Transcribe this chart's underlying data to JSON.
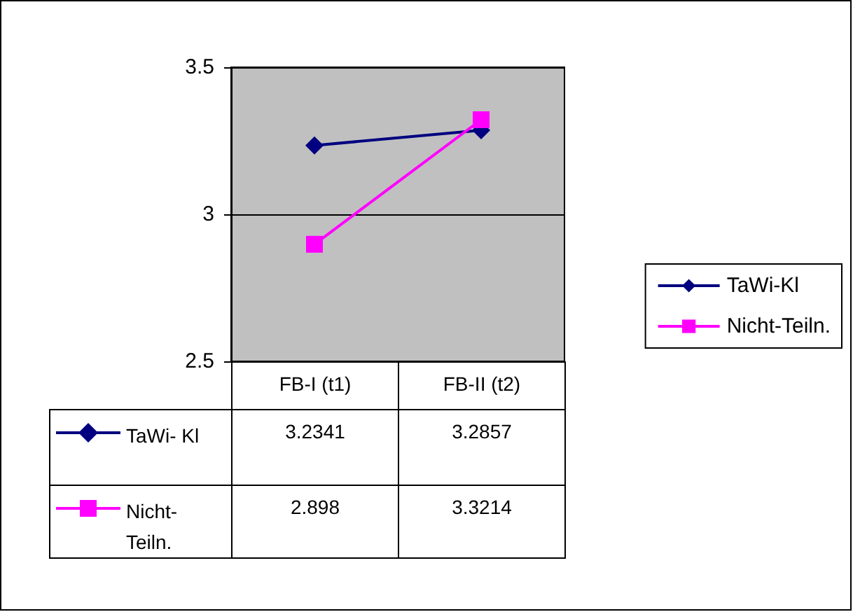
{
  "chart_data": {
    "type": "line",
    "categories": [
      "FB-I (t1)",
      "FB-II (t2)"
    ],
    "series": [
      {
        "name": "TaWi-Kl",
        "color": "#000080",
        "marker": "diamond",
        "values": [
          3.2341,
          3.2857
        ]
      },
      {
        "name": "Nicht-Teiln.",
        "color": "#ff00ff",
        "marker": "square",
        "values": [
          2.898,
          3.3214
        ]
      }
    ],
    "ylim": [
      2.5,
      3.5
    ],
    "yticks": [
      2.5,
      3,
      3.5
    ],
    "grid": "y",
    "legend": "right",
    "data_labels": true
  }
}
